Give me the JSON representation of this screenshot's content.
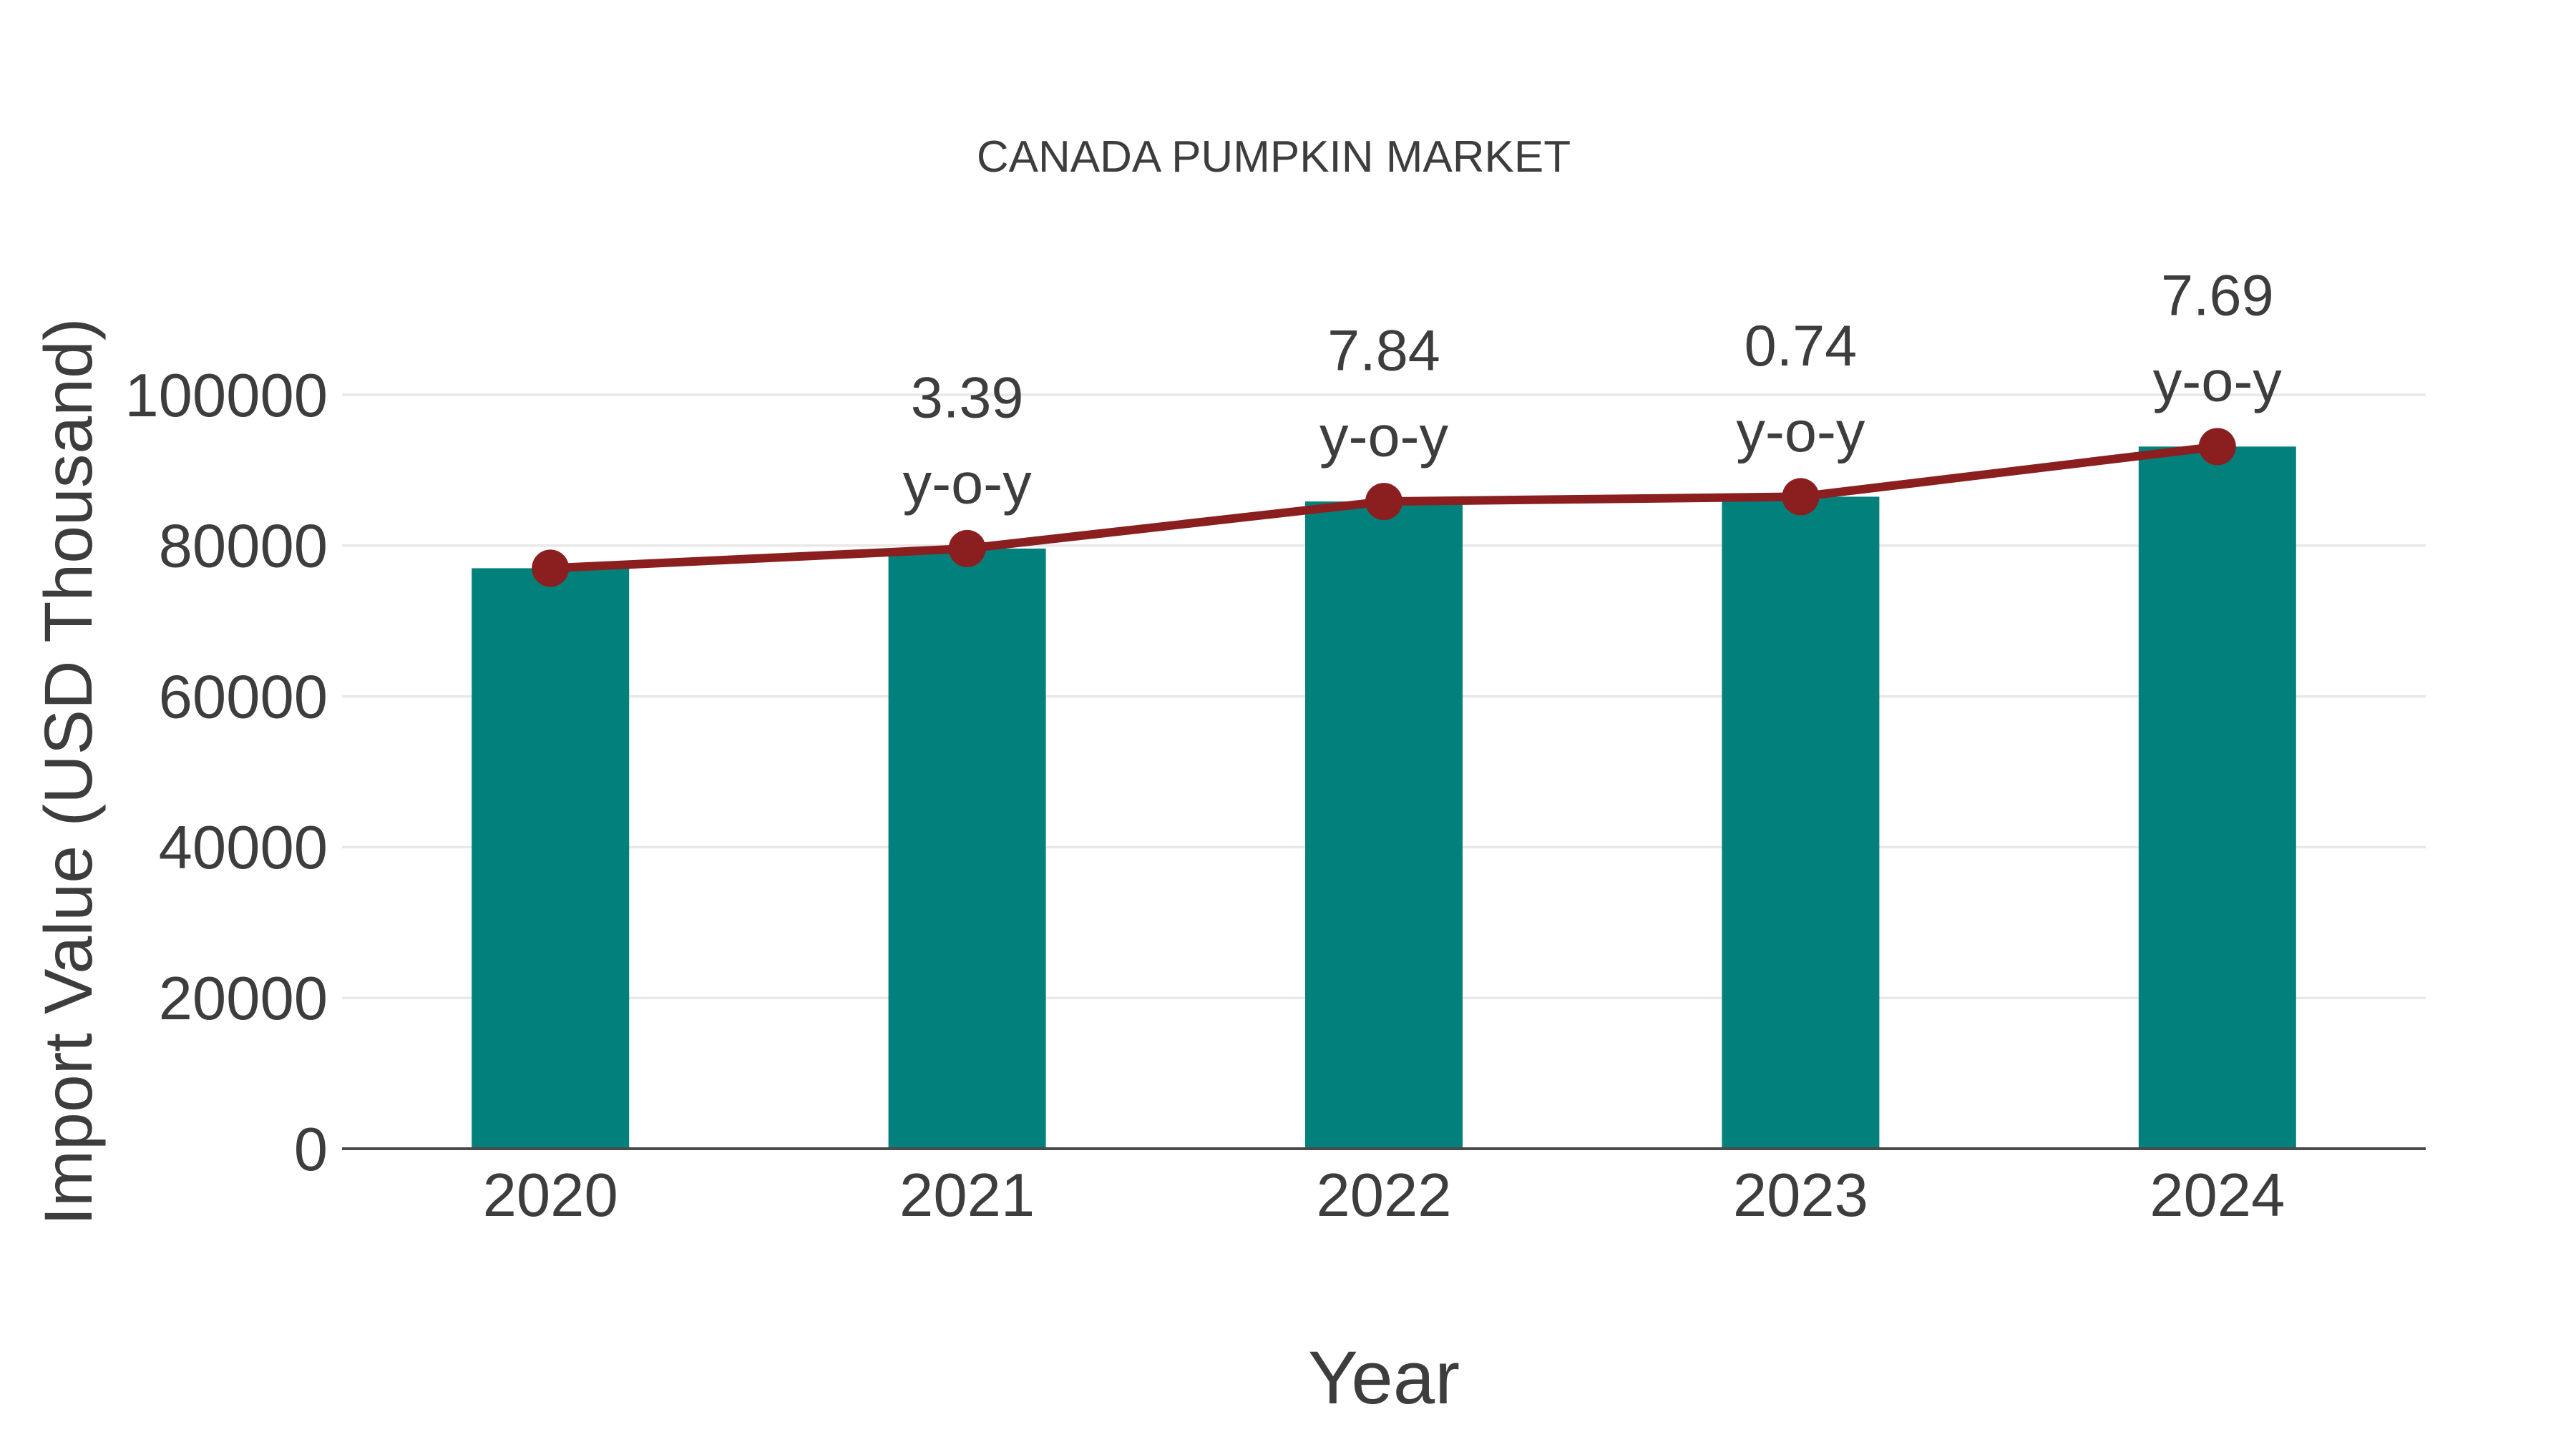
{
  "page": {
    "background": "#ffffff"
  },
  "chart_data": {
    "type": "bar",
    "title": "CANADA PUMPKIN MARKET",
    "xlabel": "Year",
    "ylabel": "Import Value (USD Thousand)",
    "categories": [
      "2020",
      "2021",
      "2022",
      "2023",
      "2024"
    ],
    "series": [
      {
        "name": "Import Value (USD Thousand)",
        "type": "bar",
        "color": "#02807c",
        "values": [
          77000,
          79610,
          85852,
          86487,
          93138
        ]
      },
      {
        "name": "y-o-y growth",
        "type": "line",
        "color": "#8b1f1f",
        "values": [
          77000,
          79610,
          85852,
          86487,
          93138
        ],
        "point_labels": [
          "",
          "3.39",
          "7.84",
          "0.74",
          "7.69"
        ],
        "point_label_suffix": "y-o-y"
      }
    ],
    "yticks": [
      0,
      20000,
      40000,
      60000,
      80000,
      100000
    ],
    "ytick_labels": [
      "0",
      "20000",
      "40000",
      "60000",
      "80000",
      "100000"
    ],
    "ylim": [
      0,
      105500
    ],
    "grid": "horizontal",
    "legend_position": "none",
    "colors": {
      "text": "#3d3d3d",
      "grid": "#e8e8e8",
      "axis": "#4a4a4a",
      "bar": "#02807c",
      "line": "#8b1f1f"
    }
  }
}
